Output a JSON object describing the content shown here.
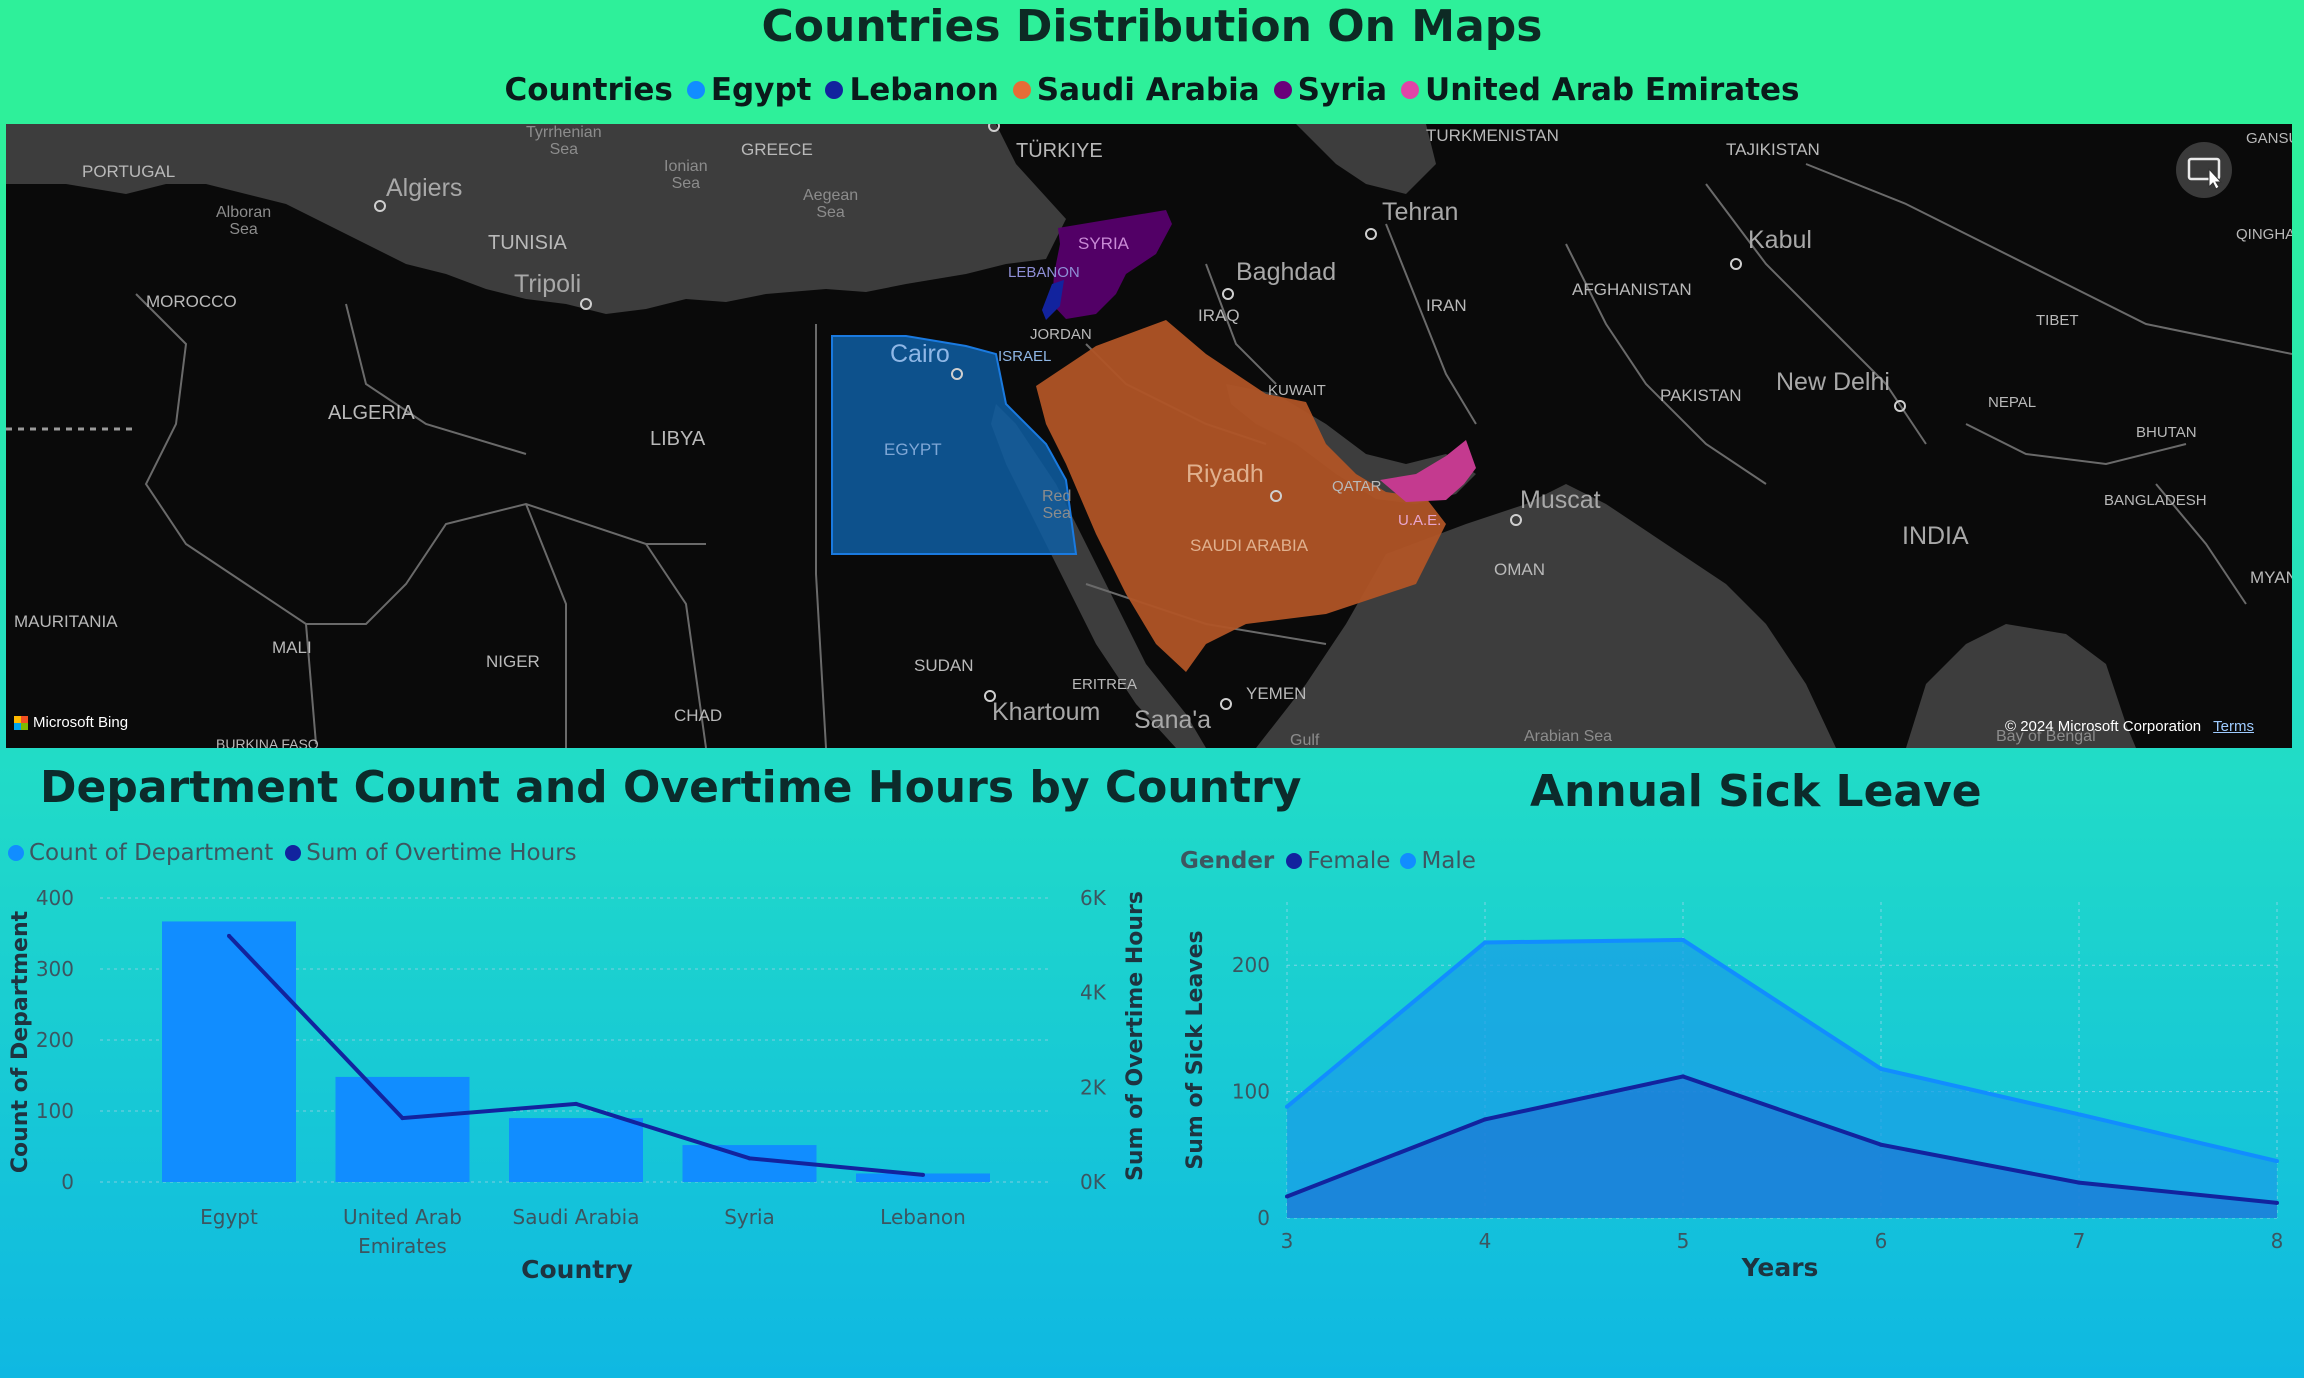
{
  "map": {
    "title": "Countries Distribution On Maps",
    "legend_title": "Countries",
    "legend": [
      {
        "name": "Egypt",
        "color": "#118dff"
      },
      {
        "name": "Lebanon",
        "color": "#12239e"
      },
      {
        "name": "Saudi Arabia",
        "color": "#e66c37"
      },
      {
        "name": "Syria",
        "color": "#6b007b"
      },
      {
        "name": "United Arab Emirates",
        "color": "#e044a7"
      }
    ],
    "labels": {
      "portugal": "PORTUGAL",
      "algiers": "Algiers",
      "alboran": "Alboran\nSea",
      "tyrrhenian": "Tyrrhenian\nSea",
      "greece": "GREECE",
      "ionian": "Ionian\nSea",
      "aegean": "Aegean\nSea",
      "turkiye": "TÜRKIYE",
      "turkmenistan": "TURKMENISTAN",
      "tajikistan": "TAJIKISTAN",
      "gansu": "GANSU",
      "tunisia": "TUNISIA",
      "tripoli": "Tripoli",
      "morocco": "MOROCCO",
      "syria": "SYRIA",
      "lebanon": "LEBANON",
      "baghdad": "Baghdad",
      "tehran": "Tehran",
      "kabul": "Kabul",
      "qinghai": "QINGHAI",
      "iraq": "IRAQ",
      "iran": "IRAN",
      "afghanistan": "AFGHANISTAN",
      "tibet": "TIBET",
      "jordan": "JORDAN",
      "cairo": "Cairo",
      "israel": "ISRAEL",
      "algeria": "ALGERIA",
      "libya": "LIBYA",
      "kuwait": "KUWAIT",
      "pakistan": "PAKISTAN",
      "newdelhi": "New Delhi",
      "nepal": "NEPAL",
      "bhutan": "BHUTAN",
      "egypt": "EGYPT",
      "riyadh": "Riyadh",
      "qatar": "QATAR",
      "redsea": "Red\nSea",
      "uae": "U.A.E.",
      "muscat": "Muscat",
      "bangladesh": "BANGLADESH",
      "saudi": "SAUDI ARABIA",
      "india": "INDIA",
      "oman": "OMAN",
      "myanmar": "MYAN",
      "mauritania": "MAURITANIA",
      "mali": "MALI",
      "niger": "NIGER",
      "sudan": "SUDAN",
      "eritrea": "ERITREA",
      "yemen": "YEMEN",
      "chad": "CHAD",
      "khartoum": "Khartoum",
      "sanaa": "Sana'a",
      "arabiansea": "Arabian Sea",
      "gulf": "Gulf",
      "bengal": "Bay of Bengal",
      "burkina": "BURKINA FASO"
    },
    "attribution": "Microsoft Bing",
    "copyright": "© 2024 Microsoft Corporation",
    "terms": "Terms"
  },
  "dept": {
    "title": "Department Count and Overtime Hours by Country",
    "legend": [
      {
        "name": "Count of Department",
        "color": "#118dff"
      },
      {
        "name": "Sum of Overtime Hours",
        "color": "#12239e"
      }
    ]
  },
  "sick": {
    "title": "Annual Sick Leave",
    "legend_title": "Gender",
    "legend": [
      {
        "name": "Female",
        "color": "#12239e"
      },
      {
        "name": "Male",
        "color": "#118dff"
      }
    ]
  },
  "chart_data": [
    {
      "type": "bar",
      "title": "Department Count and Overtime Hours by Country",
      "categories": [
        "Egypt",
        "United Arab Emirates",
        "Saudi Arabia",
        "Syria",
        "Lebanon"
      ],
      "category_lines": [
        [
          "Egypt"
        ],
        [
          "United Arab",
          "Emirates"
        ],
        [
          "Saudi Arabia"
        ],
        [
          "Syria"
        ],
        [
          "Lebanon"
        ]
      ],
      "xlabel": "Country",
      "ylabel": "Count of Department",
      "y2label": "Sum of Overtime Hours",
      "ylim": [
        0,
        400
      ],
      "y2lim": [
        0,
        6000
      ],
      "yticks": [
        0,
        100,
        200,
        300,
        400
      ],
      "y2ticks": [
        0,
        2000,
        4000,
        6000
      ],
      "y2ticklabels": [
        "0K",
        "2K",
        "4K",
        "6K"
      ],
      "grid": true,
      "series": [
        {
          "name": "Count of Department",
          "kind": "bar",
          "axis": "left",
          "color": "#118dff",
          "values": [
            367,
            148,
            90,
            52,
            12
          ]
        },
        {
          "name": "Sum of Overtime Hours",
          "kind": "line",
          "axis": "right",
          "color": "#12239e",
          "values": [
            5200,
            1350,
            1650,
            500,
            150
          ]
        }
      ]
    },
    {
      "type": "area",
      "title": "Annual Sick Leave",
      "x": [
        3,
        4,
        5,
        6,
        7,
        8
      ],
      "xlabel": "Years",
      "ylabel": "Sum of Sick Leaves",
      "xlim": [
        3,
        8
      ],
      "ylim": [
        0,
        250
      ],
      "yticks": [
        0,
        100,
        200
      ],
      "grid": true,
      "series": [
        {
          "name": "Female",
          "color": "#12239e",
          "values": [
            17,
            78,
            112,
            58,
            28,
            12
          ]
        },
        {
          "name": "Male",
          "color": "#118dff",
          "values": [
            88,
            218,
            220,
            118,
            82,
            45
          ]
        }
      ]
    }
  ]
}
